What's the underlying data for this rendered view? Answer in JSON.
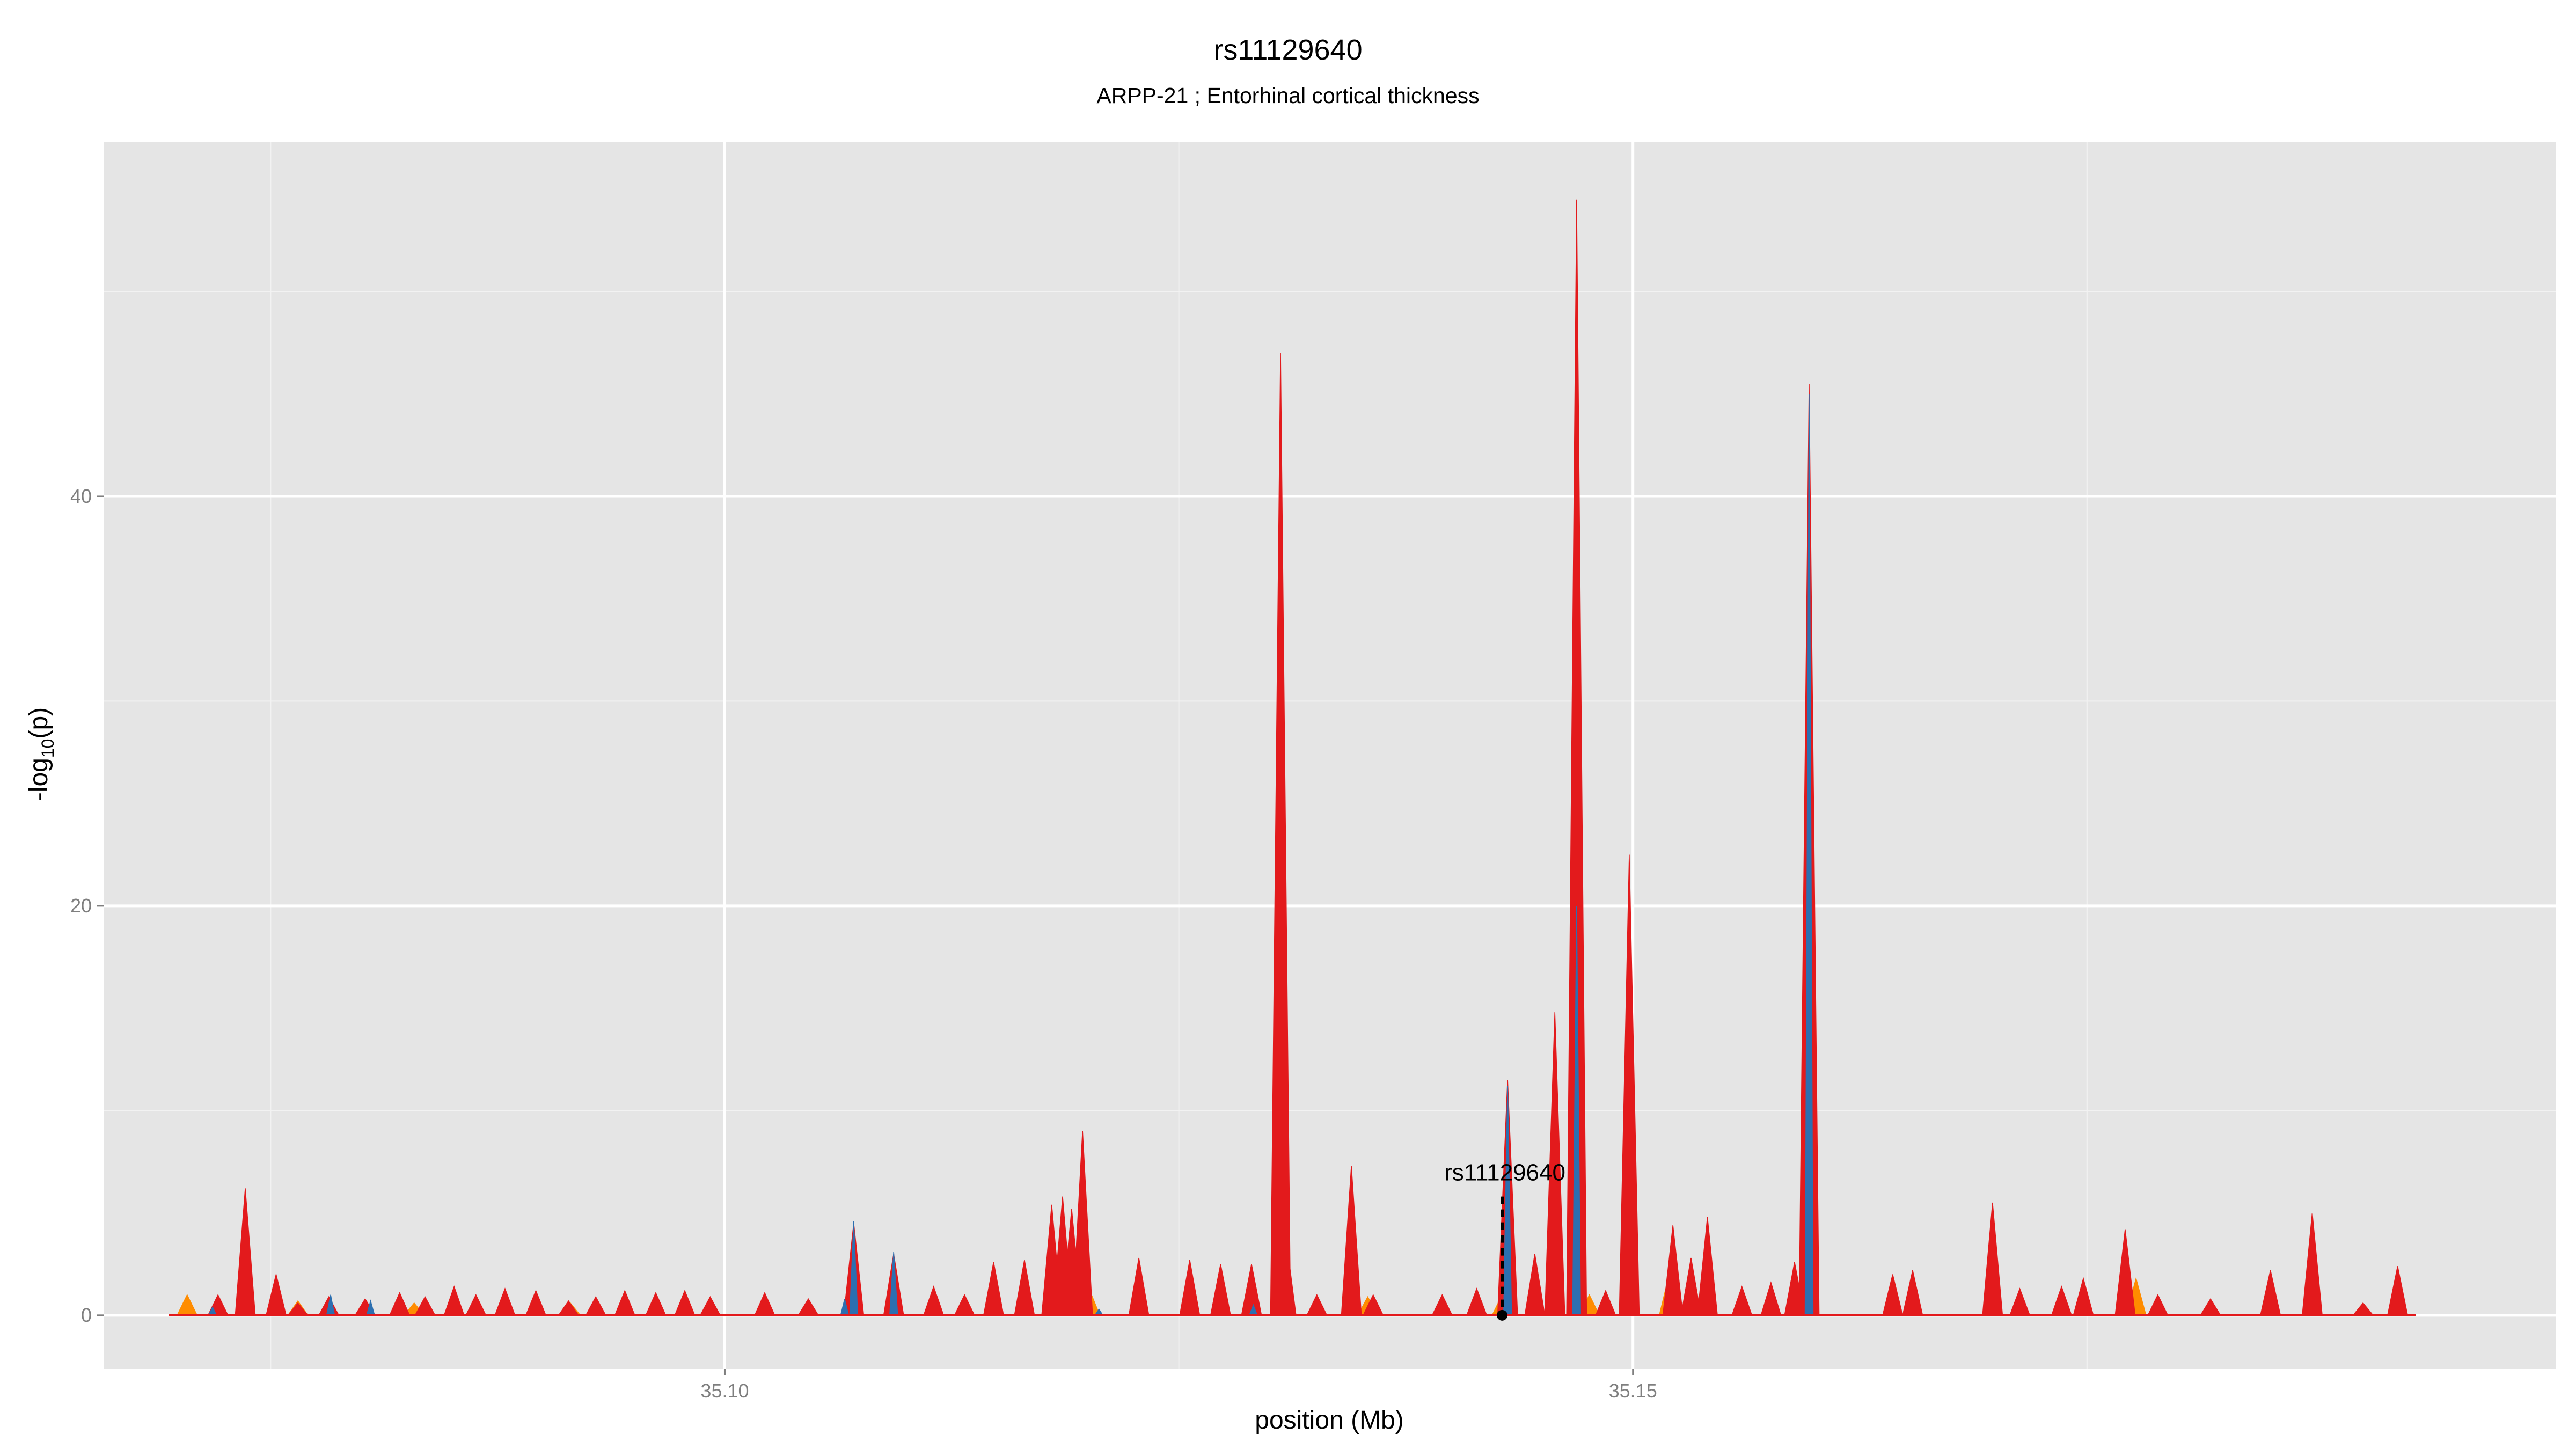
{
  "chart_data": {
    "type": "area",
    "title": "rs11129640",
    "subtitle": "ARPP-21 ; Entorhinal cortical thickness",
    "xlabel": "position (Mb)",
    "ylabel": "-log10(p)",
    "xlim": [
      35.0658,
      35.2008
    ],
    "ylim": [
      -2.6,
      57.3
    ],
    "x_ticks": [
      35.1,
      35.15
    ],
    "x_tick_labels": [
      "35.10",
      "35.15"
    ],
    "y_ticks": [
      0,
      20,
      40
    ],
    "y_tick_labels": [
      "0",
      "20",
      "40"
    ],
    "grid": true,
    "colors": {
      "panel": "#e5e5e5",
      "grid": "#ffffff",
      "red": "#e31a1c",
      "blue": "#2c6fb0",
      "orange": "#ff8c00"
    },
    "highlight": {
      "label": "rs11129640",
      "x": 35.1428,
      "y": 5.8
    },
    "series": [
      {
        "color": "red",
        "peaks": [
          [
            35.0721,
            1.0
          ],
          [
            35.0736,
            6.2
          ],
          [
            35.0753,
            2.0
          ],
          [
            35.0765,
            0.6
          ],
          [
            35.0782,
            0.9
          ],
          [
            35.0802,
            0.8
          ],
          [
            35.0821,
            1.1
          ],
          [
            35.0835,
            0.9
          ],
          [
            35.0851,
            1.4
          ],
          [
            35.0863,
            1.0
          ],
          [
            35.0879,
            1.3
          ],
          [
            35.0896,
            1.2
          ],
          [
            35.0914,
            0.7
          ],
          [
            35.0929,
            0.9
          ],
          [
            35.0945,
            1.2
          ],
          [
            35.0962,
            1.1
          ],
          [
            35.0978,
            1.2
          ],
          [
            35.0992,
            0.9
          ],
          [
            35.1022,
            1.1
          ],
          [
            35.1046,
            0.8
          ],
          [
            35.1071,
            4.5
          ],
          [
            35.1093,
            3.0
          ],
          [
            35.1115,
            1.4
          ],
          [
            35.1132,
            1.0
          ],
          [
            35.1148,
            2.6
          ],
          [
            35.1165,
            2.7
          ],
          [
            35.118,
            5.4
          ],
          [
            35.1186,
            5.8
          ],
          [
            35.1191,
            5.2
          ],
          [
            35.1197,
            9.0
          ],
          [
            35.1228,
            2.8
          ],
          [
            35.1256,
            2.7
          ],
          [
            35.1273,
            2.5
          ],
          [
            35.129,
            2.5
          ],
          [
            35.1306,
            47.0
          ],
          [
            35.1309,
            3.8
          ],
          [
            35.1326,
            1.0
          ],
          [
            35.1345,
            7.3
          ],
          [
            35.1357,
            1.0
          ],
          [
            35.1395,
            1.0
          ],
          [
            35.1414,
            1.3
          ],
          [
            35.1431,
            11.5
          ],
          [
            35.1446,
            3.0
          ],
          [
            35.1457,
            14.8
          ],
          [
            35.1469,
            54.5
          ],
          [
            35.1485,
            1.2
          ],
          [
            35.1498,
            22.5
          ],
          [
            35.1522,
            4.4
          ],
          [
            35.1532,
            2.8
          ],
          [
            35.1541,
            4.8
          ],
          [
            35.156,
            1.4
          ],
          [
            35.1576,
            1.6
          ],
          [
            35.1589,
            2.6
          ],
          [
            35.1597,
            45.5
          ],
          [
            35.1643,
            2.0
          ],
          [
            35.1654,
            2.2
          ],
          [
            35.1698,
            5.5
          ],
          [
            35.1713,
            1.3
          ],
          [
            35.1736,
            1.4
          ],
          [
            35.1748,
            1.8
          ],
          [
            35.1771,
            4.2
          ],
          [
            35.1789,
            1.0
          ],
          [
            35.1818,
            0.8
          ],
          [
            35.1851,
            2.2
          ],
          [
            35.1874,
            5.0
          ],
          [
            35.1902,
            0.6
          ],
          [
            35.1921,
            2.4
          ]
        ]
      },
      {
        "color": "blue",
        "peaks": [
          [
            35.0718,
            0.4
          ],
          [
            35.0783,
            1.0
          ],
          [
            35.0805,
            0.7
          ],
          [
            35.1066,
            0.8
          ],
          [
            35.1071,
            4.6
          ],
          [
            35.1093,
            3.1
          ],
          [
            35.1206,
            0.3
          ],
          [
            35.1291,
            0.5
          ],
          [
            35.1431,
            11.2
          ],
          [
            35.1469,
            20.0
          ],
          [
            35.1597,
            45.0
          ]
        ]
      },
      {
        "color": "orange",
        "peaks": [
          [
            35.0704,
            1.0
          ],
          [
            35.0765,
            0.7
          ],
          [
            35.0829,
            0.6
          ],
          [
            35.0915,
            0.6
          ],
          [
            35.1069,
            0.7
          ],
          [
            35.1201,
            1.2
          ],
          [
            35.1354,
            0.9
          ],
          [
            35.1428,
            1.0
          ],
          [
            35.1476,
            1.0
          ],
          [
            35.152,
            2.0
          ],
          [
            35.1777,
            1.8
          ]
        ]
      }
    ]
  }
}
